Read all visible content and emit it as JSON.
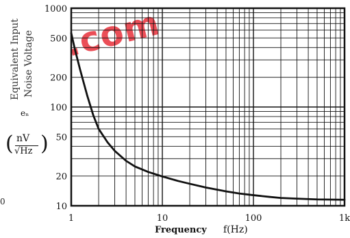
{
  "watermark": ".com",
  "chart_data": {
    "type": "line",
    "xscale": "log",
    "yscale": "log",
    "xlim": [
      1,
      1000
    ],
    "ylim": [
      10,
      1000
    ],
    "grid": true,
    "xlabel_word": "Frequency",
    "xlabel_symbol": "f(Hz)",
    "ylabel_lines": [
      "Equivalent Input",
      "Noise Voltage"
    ],
    "ylabel_symbol": "eₙ",
    "ylabel_unit_num": "nV",
    "ylabel_unit_den": "√Hz",
    "x_ticks": [
      {
        "value": 1,
        "label": "1"
      },
      {
        "value": 10,
        "label": "10"
      },
      {
        "value": 100,
        "label": "100"
      },
      {
        "value": 1000,
        "label": "1k"
      }
    ],
    "y_ticks": [
      {
        "value": 10,
        "label": "10"
      },
      {
        "value": 20,
        "label": "20"
      },
      {
        "value": 50,
        "label": "50"
      },
      {
        "value": 100,
        "label": "100"
      },
      {
        "value": 200,
        "label": "200"
      },
      {
        "value": 500,
        "label": "500"
      },
      {
        "value": 1000,
        "label": "1000"
      }
    ],
    "series": [
      {
        "color": "#111111",
        "points": [
          [
            1.0,
            560
          ],
          [
            1.1,
            380
          ],
          [
            1.25,
            240
          ],
          [
            1.5,
            130
          ],
          [
            1.75,
            82
          ],
          [
            2.0,
            60
          ],
          [
            2.5,
            44
          ],
          [
            3.0,
            36
          ],
          [
            4.0,
            28.5
          ],
          [
            5.0,
            25
          ],
          [
            7.0,
            22
          ],
          [
            10.0,
            19.8
          ],
          [
            15.0,
            17.8
          ],
          [
            20.0,
            16.7
          ],
          [
            30.0,
            15.3
          ],
          [
            50.0,
            14.0
          ],
          [
            70.0,
            13.3
          ],
          [
            100.0,
            12.8
          ],
          [
            150.0,
            12.3
          ],
          [
            200.0,
            12.0
          ],
          [
            300.0,
            11.8
          ],
          [
            500.0,
            11.6
          ],
          [
            1000.0,
            11.5
          ]
        ]
      }
    ]
  },
  "edge_fragment": "0"
}
